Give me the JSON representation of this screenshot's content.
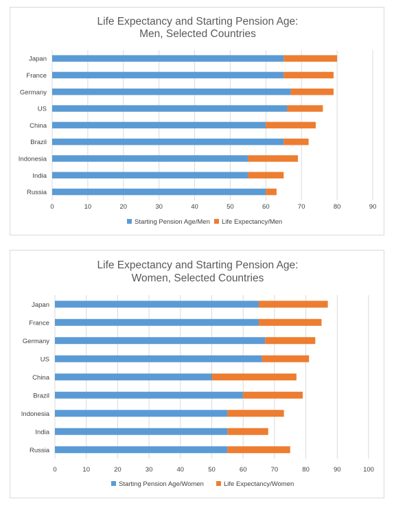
{
  "colors": {
    "pension": "#5b9bd5",
    "life": "#ed7d31",
    "grid": "#d9d9d9",
    "text": "#404040",
    "title": "#595959"
  },
  "chart_data": [
    {
      "type": "bar",
      "orientation": "horizontal",
      "stacked": true,
      "title_lines": [
        "Life Expectancy and Starting Pension Age:",
        "Men, Selected Countries"
      ],
      "categories": [
        "Japan",
        "France",
        "Germany",
        "US",
        "China",
        "Brazil",
        "Indonesia",
        "India",
        "Russia"
      ],
      "xlim": [
        0,
        90
      ],
      "xticks": [
        0,
        10,
        20,
        30,
        40,
        50,
        60,
        70,
        80,
        90
      ],
      "grid": true,
      "legend_position": "bottom",
      "series": [
        {
          "name": "Starting Pension Age/Men",
          "color": "#5b9bd5",
          "values": [
            65,
            65,
            67,
            66,
            60,
            65,
            55,
            55,
            60
          ]
        },
        {
          "name": "Life Expectancy/Men",
          "color": "#ed7d31",
          "values": [
            15,
            14,
            12,
            10,
            14,
            7,
            14,
            10,
            3
          ]
        }
      ]
    },
    {
      "type": "bar",
      "orientation": "horizontal",
      "stacked": true,
      "title_lines": [
        "Life Expectancy and Starting Pension Age:",
        "Women, Selected Countries"
      ],
      "categories": [
        "Japan",
        "France",
        "Germany",
        "US",
        "China",
        "Brazil",
        "Indonesia",
        "India",
        "Russia"
      ],
      "xlim": [
        0,
        100
      ],
      "xticks": [
        0,
        10,
        20,
        30,
        40,
        50,
        60,
        70,
        80,
        90,
        100
      ],
      "grid": true,
      "legend_position": "bottom",
      "series": [
        {
          "name": "Starting Pension Age/Women",
          "color": "#5b9bd5",
          "values": [
            65,
            65,
            67,
            66,
            50,
            60,
            55,
            55,
            55
          ]
        },
        {
          "name": "Life Expectancy/Women",
          "color": "#ed7d31",
          "values": [
            22,
            20,
            16,
            15,
            27,
            19,
            18,
            13,
            20
          ]
        }
      ]
    }
  ]
}
